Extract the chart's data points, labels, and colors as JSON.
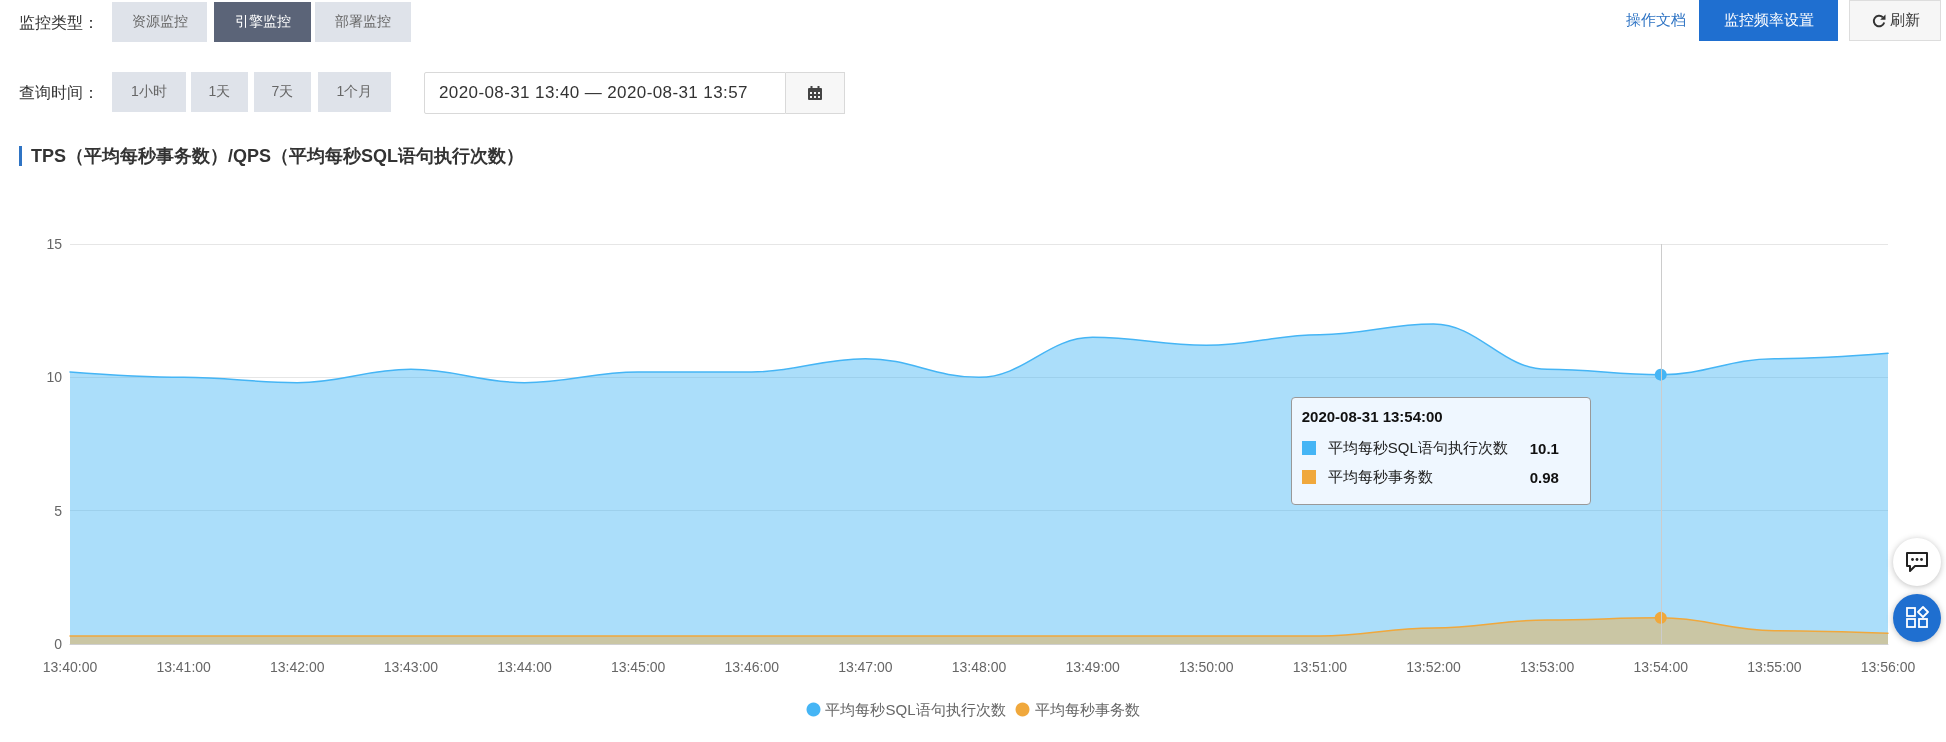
{
  "chart_data": {
    "type": "area",
    "title": "TPS（平均每秒事务数）/QPS（平均每秒SQL语句执行次数）",
    "categories": [
      "13:40:00",
      "13:41:00",
      "13:42:00",
      "13:43:00",
      "13:44:00",
      "13:45:00",
      "13:46:00",
      "13:47:00",
      "13:48:00",
      "13:49:00",
      "13:50:00",
      "13:51:00",
      "13:52:00",
      "13:53:00",
      "13:54:00",
      "13:55:00",
      "13:56:00"
    ],
    "series": [
      {
        "name": "平均每秒SQL语句执行次数",
        "color": "#45b5f5",
        "values": [
          10.2,
          10.0,
          9.8,
          10.3,
          9.8,
          10.2,
          10.2,
          10.7,
          10.0,
          11.5,
          11.2,
          11.6,
          12.0,
          10.3,
          10.1,
          10.7,
          10.9
        ]
      },
      {
        "name": "平均每秒事务数",
        "color": "#f0a83c",
        "values": [
          0.3,
          0.3,
          0.3,
          0.3,
          0.3,
          0.3,
          0.3,
          0.3,
          0.3,
          0.3,
          0.3,
          0.3,
          0.6,
          0.9,
          0.98,
          0.5,
          0.4
        ]
      }
    ],
    "ylim": [
      0,
      15
    ],
    "yticks": [
      0,
      5,
      10,
      15
    ],
    "grid": "y",
    "legend": "bottom",
    "marker": "none",
    "ref_lines": [
      {
        "axis": "x",
        "value": "13:54:00",
        "color": "#cccccc"
      }
    ],
    "annotations": [
      "监控类型：",
      "资源监控",
      "引擎监控",
      "部署监控",
      "查询时间：",
      "1小时",
      "1天",
      "7天",
      "1个月",
      "2020-08-31 13:40 — 2020-08-31 13:57",
      "操作文档",
      "监控频率设置",
      "刷新",
      "2020-08-31 13:54:00",
      "10.1",
      "0.98"
    ]
  }
}
